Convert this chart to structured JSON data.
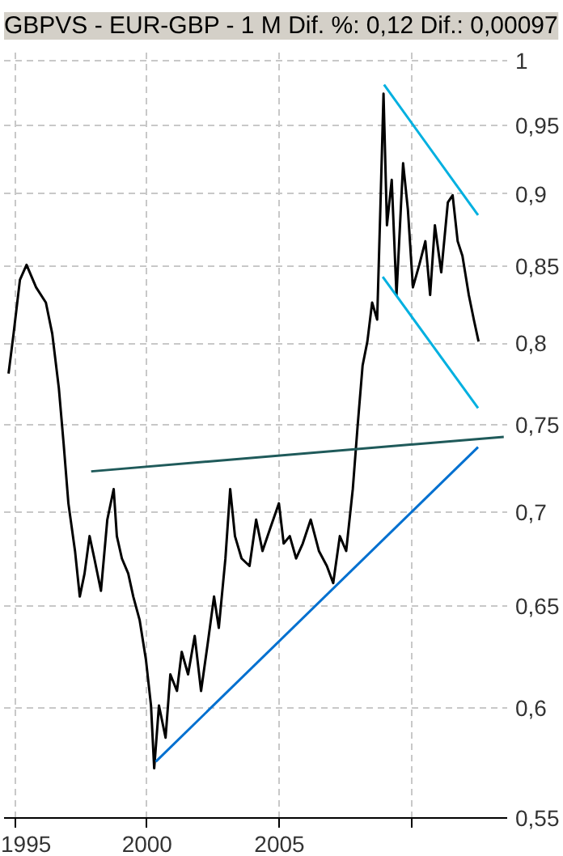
{
  "chart_data": {
    "type": "line",
    "title": "GBPVS - EUR-GBP - 1 M Dif. %: 0,12 Dif.: 0,00097",
    "log": "y",
    "grid": true,
    "marker": "none",
    "line_style": "solid",
    "xlim": [
      1994.6,
      2013.6
    ],
    "ylim": [
      0.55,
      1.01
    ],
    "xticks": [
      1995,
      2000,
      2005,
      {
        "value": 2010,
        "label": null
      }
    ],
    "yticks": [
      {
        "value": 0.55,
        "label": "0,55"
      },
      {
        "value": 0.6,
        "label": "0,6"
      },
      {
        "value": 0.65,
        "label": "0,65"
      },
      {
        "value": 0.7,
        "label": "0,7"
      },
      {
        "value": 0.75,
        "label": "0,75"
      },
      {
        "value": 0.8,
        "label": "0,8"
      },
      {
        "value": 0.85,
        "label": "0,85"
      },
      {
        "value": 0.9,
        "label": "0,9"
      },
      {
        "value": 0.95,
        "label": "0,95"
      },
      {
        "value": 1,
        "label": "1"
      }
    ],
    "series": [
      {
        "color": "#000000",
        "x": [
          1994.77,
          1994.96,
          1995.2,
          1995.45,
          1995.81,
          1996.18,
          1996.42,
          1996.67,
          1996.85,
          1997.03,
          1997.28,
          1997.46,
          1997.64,
          1997.83,
          1998.01,
          1998.26,
          1998.5,
          1998.74,
          1998.86,
          1999.05,
          1999.29,
          1999.48,
          1999.72,
          1999.96,
          2000.15,
          2000.27,
          2000.45,
          2000.7,
          2000.88,
          2001.13,
          2001.31,
          2001.55,
          2001.8,
          2002.04,
          2002.29,
          2002.53,
          2002.71,
          2002.96,
          2003.14,
          2003.32,
          2003.57,
          2003.87,
          2004.12,
          2004.36,
          2004.67,
          2004.98,
          2005.16,
          2005.39,
          2005.63,
          2005.88,
          2006.18,
          2006.49,
          2006.79,
          2007.03,
          2007.28,
          2007.52,
          2007.77,
          2007.95,
          2008.14,
          2008.32,
          2008.5,
          2008.69,
          2008.81,
          2008.93,
          2009.06,
          2009.24,
          2009.42,
          2009.67,
          2009.85,
          2010.04,
          2010.28,
          2010.51,
          2010.69,
          2010.87,
          2011.11,
          2011.36,
          2011.54,
          2011.73,
          2011.91,
          2012.15,
          2012.34,
          2012.52
        ],
        "values": [
          0.781,
          0.806,
          0.841,
          0.851,
          0.836,
          0.826,
          0.806,
          0.772,
          0.739,
          0.705,
          0.679,
          0.655,
          0.667,
          0.687,
          0.675,
          0.658,
          0.696,
          0.713,
          0.687,
          0.675,
          0.667,
          0.655,
          0.643,
          0.623,
          0.601,
          0.572,
          0.601,
          0.586,
          0.616,
          0.608,
          0.627,
          0.616,
          0.635,
          0.608,
          0.631,
          0.655,
          0.639,
          0.675,
          0.713,
          0.687,
          0.675,
          0.671,
          0.696,
          0.679,
          0.692,
          0.705,
          0.683,
          0.687,
          0.675,
          0.683,
          0.696,
          0.679,
          0.671,
          0.662,
          0.687,
          0.679,
          0.713,
          0.749,
          0.786,
          0.801,
          0.826,
          0.815,
          0.889,
          0.974,
          0.878,
          0.91,
          0.831,
          0.922,
          0.889,
          0.836,
          0.851,
          0.867,
          0.831,
          0.878,
          0.846,
          0.894,
          0.899,
          0.867,
          0.857,
          0.831,
          0.815,
          0.801
        ]
      },
      {
        "color": "#00b0e0",
        "x": [
          2008.95,
          2012.5
        ],
        "values": [
          0.981,
          0.885
        ]
      },
      {
        "color": "#00b0e0",
        "x": [
          2008.9,
          2012.5
        ],
        "values": [
          0.843,
          0.76
        ]
      },
      {
        "color": "#1f5a5a",
        "x": [
          1997.89,
          2013.47
        ],
        "values": [
          0.723,
          0.743
        ]
      },
      {
        "color": "#0070d0",
        "x": [
          2000.33,
          2012.5
        ],
        "values": [
          0.575,
          0.737
        ]
      }
    ]
  }
}
